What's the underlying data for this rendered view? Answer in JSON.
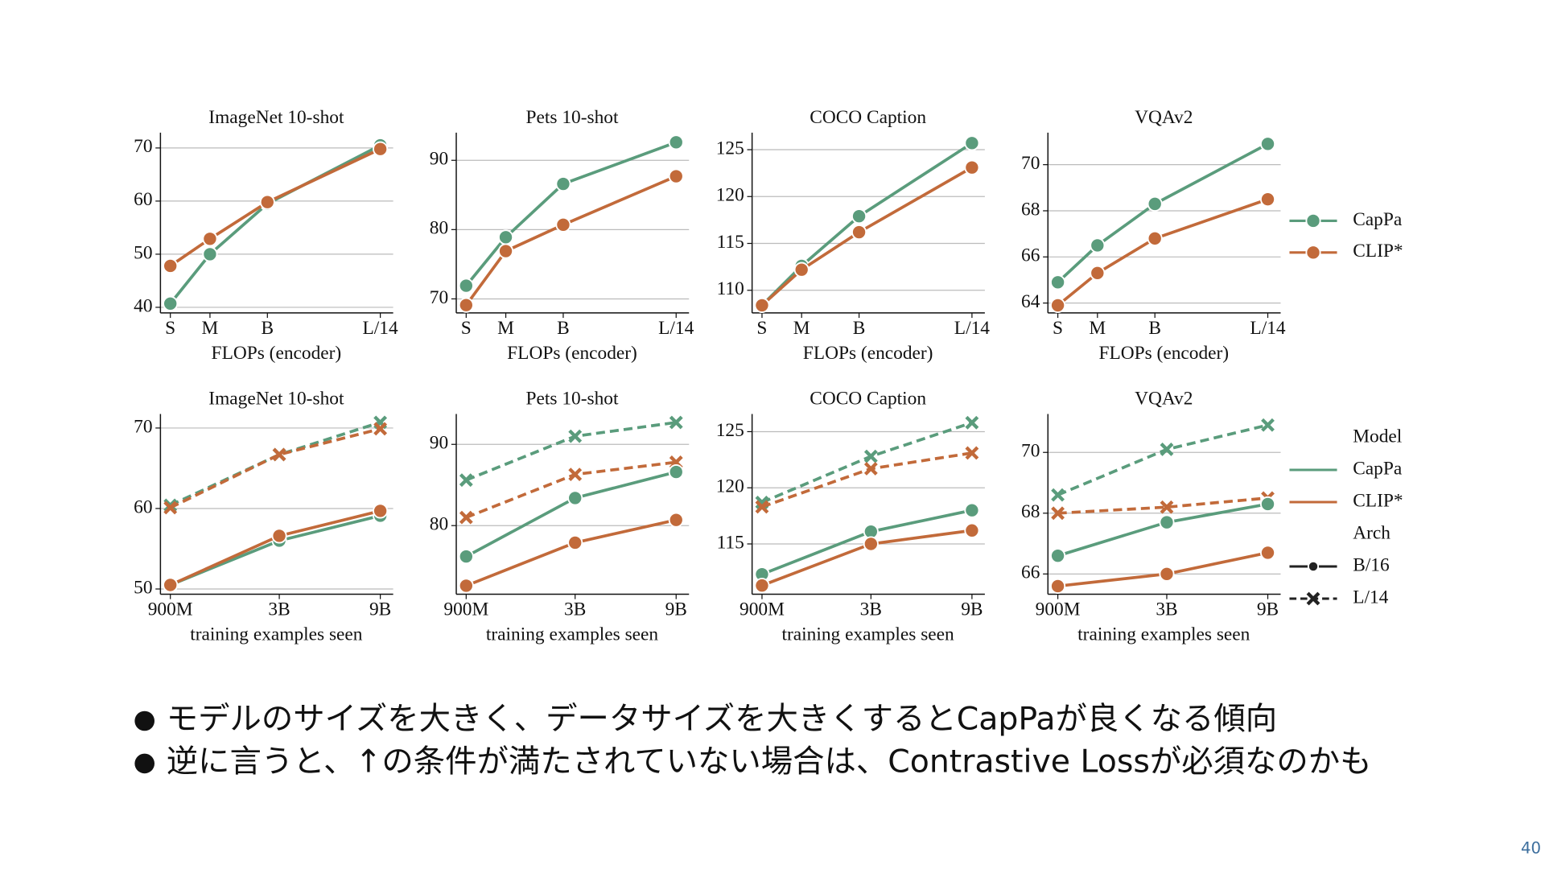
{
  "chart_data": [
    {
      "type": "line",
      "title": "ImageNet 10-shot",
      "xlabel": "FLOPs (encoder)",
      "categories": [
        "S",
        "M",
        "B",
        "L/14"
      ],
      "series": [
        {
          "name": "CapPa",
          "color": "#5a9c7c",
          "marker": "circle",
          "dashed": false,
          "values": [
            40.7,
            50,
            59.5,
            70.5
          ]
        },
        {
          "name": "CLIP*",
          "color": "#c26a3a",
          "marker": "circle",
          "dashed": false,
          "values": [
            47.8,
            52.9,
            59.8,
            69.8
          ]
        }
      ],
      "ylim": [
        39.5,
        72.5
      ],
      "yticks": [
        40,
        50,
        60,
        70
      ],
      "grid": true
    },
    {
      "type": "line",
      "title": "Pets 10-shot",
      "xlabel": "FLOPs (encoder)",
      "categories": [
        "S",
        "M",
        "B",
        "L/14"
      ],
      "series": [
        {
          "name": "CapPa",
          "color": "#5a9c7c",
          "marker": "circle",
          "dashed": false,
          "values": [
            71.9,
            78.9,
            86.6,
            92.6
          ]
        },
        {
          "name": "CLIP*",
          "color": "#c26a3a",
          "marker": "circle",
          "dashed": false,
          "values": [
            69.1,
            76.9,
            80.7,
            87.7
          ]
        }
      ],
      "ylim": [
        68.4,
        93.7
      ],
      "yticks": [
        70,
        80,
        90
      ],
      "grid": true
    },
    {
      "type": "line",
      "title": "COCO Caption",
      "xlabel": "FLOPs (encoder)",
      "categories": [
        "S",
        "M",
        "B",
        "L/14"
      ],
      "series": [
        {
          "name": "CapPa",
          "color": "#5a9c7c",
          "marker": "circle",
          "dashed": false,
          "values": [
            108.4,
            112.6,
            117.9,
            125.7
          ]
        },
        {
          "name": "CLIP*",
          "color": "#c26a3a",
          "marker": "circle",
          "dashed": false,
          "values": [
            108.4,
            112.2,
            116.2,
            123.1
          ]
        }
      ],
      "ylim": [
        107.9,
        126.6
      ],
      "yticks": [
        110,
        115,
        120,
        125
      ],
      "grid": true
    },
    {
      "type": "line",
      "title": "VQAv2",
      "xlabel": "FLOPs (encoder)",
      "categories": [
        "S",
        "M",
        "B",
        "L/14"
      ],
      "series": [
        {
          "name": "CapPa",
          "color": "#5a9c7c",
          "marker": "circle",
          "dashed": false,
          "values": [
            64.9,
            66.5,
            68.3,
            70.9
          ]
        },
        {
          "name": "CLIP*",
          "color": "#c26a3a",
          "marker": "circle",
          "dashed": false,
          "values": [
            63.9,
            65.3,
            66.8,
            68.5
          ]
        }
      ],
      "ylim": [
        63.7,
        71.3
      ],
      "yticks": [
        64,
        66,
        68,
        70
      ],
      "grid": true
    },
    {
      "type": "line",
      "title": "ImageNet 10-shot",
      "xlabel": "training examples seen",
      "categories": [
        "900M",
        "3B",
        "9B"
      ],
      "series": [
        {
          "name": "CapPa",
          "arch": "L/14",
          "color": "#5a9c7c",
          "marker": "x",
          "dashed": true,
          "values": [
            60.4,
            66.7,
            70.7
          ]
        },
        {
          "name": "CLIP*",
          "arch": "L/14",
          "color": "#c26a3a",
          "marker": "x",
          "dashed": true,
          "values": [
            60.1,
            66.7,
            69.9
          ]
        },
        {
          "name": "CapPa",
          "arch": "B/16",
          "color": "#5a9c7c",
          "marker": "circle",
          "dashed": false,
          "values": [
            50.5,
            56,
            59.1
          ]
        },
        {
          "name": "CLIP*",
          "arch": "B/16",
          "color": "#c26a3a",
          "marker": "circle",
          "dashed": false,
          "values": [
            50.5,
            56.6,
            59.7
          ]
        }
      ],
      "ylim": [
        49.6,
        71.5
      ],
      "yticks": [
        50,
        60,
        70
      ],
      "grid": true
    },
    {
      "type": "line",
      "title": "Pets 10-shot",
      "xlabel": "training examples seen",
      "categories": [
        "900M",
        "3B",
        "9B"
      ],
      "series": [
        {
          "name": "CapPa",
          "arch": "L/14",
          "color": "#5a9c7c",
          "marker": "x",
          "dashed": true,
          "values": [
            85.6,
            91,
            92.7
          ]
        },
        {
          "name": "CLIP*",
          "arch": "L/14",
          "color": "#c26a3a",
          "marker": "x",
          "dashed": true,
          "values": [
            81,
            86.3,
            87.8
          ]
        },
        {
          "name": "CapPa",
          "arch": "B/16",
          "color": "#5a9c7c",
          "marker": "circle",
          "dashed": false,
          "values": [
            76.2,
            83.4,
            86.6
          ]
        },
        {
          "name": "CLIP*",
          "arch": "B/16",
          "color": "#c26a3a",
          "marker": "circle",
          "dashed": false,
          "values": [
            72.6,
            77.9,
            80.7
          ]
        }
      ],
      "ylim": [
        71.8,
        93.5
      ],
      "yticks": [
        80,
        90
      ],
      "grid": true
    },
    {
      "type": "line",
      "title": "COCO Caption",
      "xlabel": "training examples seen",
      "categories": [
        "900M",
        "3B",
        "9B"
      ],
      "series": [
        {
          "name": "CapPa",
          "arch": "L/14",
          "color": "#5a9c7c",
          "marker": "x",
          "dashed": true,
          "values": [
            118.7,
            122.8,
            125.8
          ]
        },
        {
          "name": "CLIP*",
          "arch": "L/14",
          "color": "#c26a3a",
          "marker": "x",
          "dashed": true,
          "values": [
            118.3,
            121.7,
            123.1
          ]
        },
        {
          "name": "CapPa",
          "arch": "B/16",
          "color": "#5a9c7c",
          "marker": "circle",
          "dashed": false,
          "values": [
            112.3,
            116.1,
            118
          ]
        },
        {
          "name": "CLIP*",
          "arch": "B/16",
          "color": "#c26a3a",
          "marker": "circle",
          "dashed": false,
          "values": [
            111.3,
            115,
            116.2
          ]
        }
      ],
      "ylim": [
        110.7,
        126.4
      ],
      "yticks": [
        115,
        120,
        125
      ],
      "grid": true
    },
    {
      "type": "line",
      "title": "VQAv2",
      "xlabel": "training examples seen",
      "categories": [
        "900M",
        "3B",
        "9B"
      ],
      "series": [
        {
          "name": "CapPa",
          "arch": "L/14",
          "color": "#5a9c7c",
          "marker": "x",
          "dashed": true,
          "values": [
            68.6,
            70.1,
            70.9
          ]
        },
        {
          "name": "CLIP*",
          "arch": "L/14",
          "color": "#c26a3a",
          "marker": "x",
          "dashed": true,
          "values": [
            68,
            68.2,
            68.5
          ]
        },
        {
          "name": "CapPa",
          "arch": "B/16",
          "color": "#5a9c7c",
          "marker": "circle",
          "dashed": false,
          "values": [
            66.6,
            67.7,
            68.3
          ]
        },
        {
          "name": "CLIP*",
          "arch": "B/16",
          "color": "#c26a3a",
          "marker": "circle",
          "dashed": false,
          "values": [
            65.6,
            66,
            66.7
          ]
        }
      ],
      "ylim": [
        65.4,
        71.2
      ],
      "yticks": [
        66,
        68,
        70
      ],
      "grid": true
    }
  ],
  "legends": [
    {
      "entries": [
        {
          "name": "CapPa",
          "color": "#5a9c7c",
          "marker": "circle",
          "dashed": false
        },
        {
          "name": "CLIP*",
          "color": "#c26a3a",
          "marker": "circle",
          "dashed": false
        }
      ]
    },
    {
      "sections": [
        {
          "title": "Model",
          "entries": [
            {
              "name": "CapPa",
              "color": "#5a9c7c",
              "marker": "none",
              "dashed": false
            },
            {
              "name": "CLIP*",
              "color": "#c26a3a",
              "marker": "none",
              "dashed": false
            }
          ]
        },
        {
          "title": "Arch",
          "entries": [
            {
              "name": "B/16",
              "color": "#222222",
              "marker": "circle",
              "dashed": false
            },
            {
              "name": "L/14",
              "color": "#222222",
              "marker": "x",
              "dashed": true
            }
          ]
        }
      ]
    }
  ],
  "bullets": [
    "モデルのサイズを大きく、データサイズを大きくするとCapPaが良くなる傾向",
    "逆に言うと、↑の条件が満たされていない場合は、Contrastive Lossが必須なのかも"
  ],
  "page_number": 40
}
